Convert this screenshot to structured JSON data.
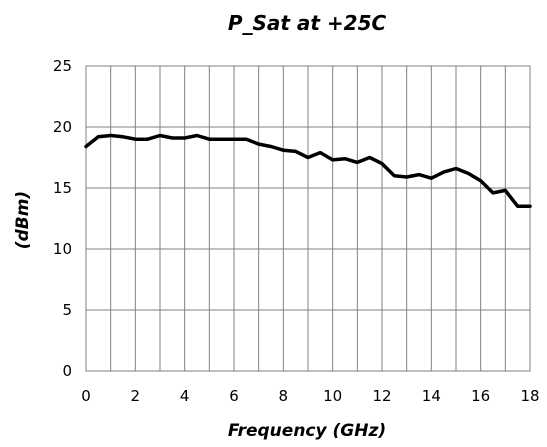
{
  "chart_data": {
    "type": "line",
    "title": "P_Sat at +25C",
    "xlabel": "Frequency (GHz)",
    "ylabel": "(dBm)",
    "xlim": [
      0,
      18
    ],
    "ylim": [
      0,
      25
    ],
    "xticks": [
      "0",
      "2",
      "4",
      "6",
      "8",
      "10",
      "12",
      "14",
      "16",
      "18"
    ],
    "yticks": [
      "0",
      "5",
      "10",
      "15",
      "20",
      "25"
    ],
    "grid": true,
    "legend": "none",
    "series": [
      {
        "x": [
          0,
          0.5,
          1,
          1.5,
          2,
          2.5,
          3,
          3.5,
          4,
          4.5,
          5,
          5.5,
          6,
          6.5,
          7,
          7.5,
          8,
          8.5,
          9,
          9.5,
          10,
          10.5,
          11,
          11.5,
          12,
          12.5,
          13,
          13.5,
          14,
          14.5,
          15,
          15.5,
          16,
          16.5,
          17,
          17.5,
          18
        ],
        "y": [
          18.4,
          19.2,
          19.3,
          19.2,
          19.0,
          19.0,
          19.3,
          19.1,
          19.1,
          19.3,
          19.0,
          19.0,
          19.0,
          19.0,
          18.6,
          18.4,
          18.1,
          18.0,
          17.5,
          17.9,
          17.3,
          17.4,
          17.1,
          17.5,
          17.0,
          16.0,
          15.9,
          16.1,
          15.8,
          16.3,
          16.6,
          16.2,
          15.6,
          14.6,
          14.8,
          13.5,
          13.5
        ]
      }
    ]
  },
  "colors": {
    "line": "#000000",
    "grid": "#808080",
    "axis": "#808080"
  }
}
